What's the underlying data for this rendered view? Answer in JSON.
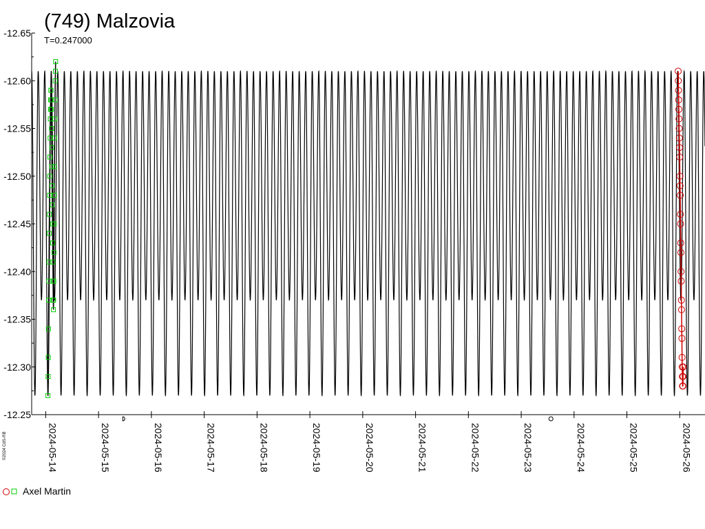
{
  "chart_data": {
    "type": "line",
    "title": "(749) Malzovia",
    "subtitle": "T=0.247000",
    "credit": "©2024 CdS-RB",
    "y_axis": {
      "range": [
        -12.65,
        -12.25
      ],
      "inverted": true,
      "tick_labels": [
        "-12.65",
        "-12.60",
        "-12.55",
        "-12.50",
        "-12.45",
        "-12.40",
        "-12.35",
        "-12.30",
        "-12.25"
      ]
    },
    "x_axis": {
      "range": [
        "2024-05-13 17:37",
        "2024-05-26 11:29"
      ],
      "tick_labels": [
        "2024-05-14",
        "2024-05-15",
        "2024-05-16",
        "2024-05-17",
        "2024-05-18",
        "2024-05-19",
        "2024-05-20",
        "2024-05-21",
        "2024-05-22",
        "2024-05-23",
        "2024-05-24",
        "2024-05-25",
        "2024-05-26"
      ]
    },
    "model_curve": {
      "period_days": 0.247,
      "mag_bright": -12.61,
      "mag_faint": -12.27,
      "shallow_min": -12.37,
      "color": "#000000"
    },
    "moon_phases": [
      {
        "date": "2024-05-15 11:00",
        "symbol": "first-quarter"
      },
      {
        "date": "2024-05-23 13:30",
        "symbol": "full-moon"
      }
    ],
    "series": [
      {
        "name": "Axel Martin",
        "date": "2024-05-14",
        "color": "#00cc00",
        "marker": "square",
        "points": [
          [
            0.0,
            -12.27
          ],
          [
            0.06,
            -12.29
          ],
          [
            0.12,
            -12.31
          ],
          [
            0.18,
            -12.34
          ],
          [
            0.24,
            -12.37
          ],
          [
            0.3,
            -12.39
          ],
          [
            0.36,
            -12.41
          ],
          [
            0.42,
            -12.44
          ],
          [
            0.48,
            -12.46
          ],
          [
            0.54,
            -12.48
          ],
          [
            0.6,
            -12.5
          ],
          [
            0.66,
            -12.52
          ],
          [
            0.72,
            -12.54
          ],
          [
            0.78,
            -12.56
          ],
          [
            0.84,
            -12.57
          ],
          [
            0.9,
            -12.58
          ],
          [
            0.96,
            -12.59
          ],
          [
            1.02,
            -12.59
          ],
          [
            1.08,
            -12.58
          ],
          [
            1.14,
            -12.57
          ],
          [
            1.2,
            -12.55
          ],
          [
            1.26,
            -12.53
          ],
          [
            1.32,
            -12.51
          ],
          [
            1.38,
            -12.49
          ],
          [
            1.44,
            -12.47
          ],
          [
            1.5,
            -12.45
          ],
          [
            1.56,
            -12.43
          ],
          [
            1.62,
            -12.41
          ],
          [
            1.68,
            -12.39
          ],
          [
            1.74,
            -12.37
          ],
          [
            1.8,
            -12.36
          ],
          [
            1.86,
            -12.37
          ],
          [
            1.92,
            -12.39
          ],
          [
            1.98,
            -12.42
          ],
          [
            2.04,
            -12.45
          ],
          [
            2.1,
            -12.48
          ],
          [
            2.16,
            -12.51
          ],
          [
            2.22,
            -12.54
          ],
          [
            2.28,
            -12.56
          ],
          [
            2.34,
            -12.58
          ],
          [
            2.4,
            -12.6
          ],
          [
            2.46,
            -12.61
          ],
          [
            2.52,
            -12.62
          ]
        ],
        "time_span_hours": [
          1.0,
          4.5
        ]
      },
      {
        "name": "Axel Martin",
        "date": "2024-05-26",
        "color": "#cc0000",
        "marker": "circle",
        "points": [
          [
            0.0,
            -12.61
          ],
          [
            0.05,
            -12.6
          ],
          [
            0.1,
            -12.59
          ],
          [
            0.15,
            -12.58
          ],
          [
            0.2,
            -12.57
          ],
          [
            0.25,
            -12.56
          ],
          [
            0.3,
            -12.55
          ],
          [
            0.35,
            -12.54
          ],
          [
            0.4,
            -12.53
          ],
          [
            0.45,
            -12.52
          ],
          [
            0.5,
            -12.5
          ],
          [
            0.55,
            -12.49
          ],
          [
            0.6,
            -12.48
          ],
          [
            0.65,
            -12.46
          ],
          [
            0.7,
            -12.45
          ],
          [
            0.75,
            -12.43
          ],
          [
            0.8,
            -12.42
          ],
          [
            0.85,
            -12.4
          ],
          [
            0.9,
            -12.39
          ],
          [
            0.95,
            -12.37
          ],
          [
            1.0,
            -12.36
          ],
          [
            1.05,
            -12.34
          ],
          [
            1.1,
            -12.33
          ],
          [
            1.15,
            -12.31
          ],
          [
            1.2,
            -12.3
          ],
          [
            1.25,
            -12.29
          ],
          [
            1.3,
            -12.28
          ],
          [
            1.35,
            -12.28
          ],
          [
            1.4,
            -12.28
          ],
          [
            1.45,
            -12.29
          ],
          [
            1.5,
            -12.3
          ]
        ],
        "time_span_hours": [
          -0.7,
          1.6
        ]
      }
    ],
    "legend": {
      "label": "Axel Martin",
      "placement": "bottom-left",
      "markers": [
        {
          "shape": "circle",
          "color": "#cc0000"
        },
        {
          "shape": "square",
          "color": "#00cc00"
        }
      ]
    }
  }
}
